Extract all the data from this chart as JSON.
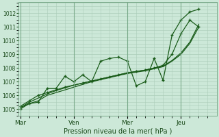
{
  "bg_color": "#cce8d8",
  "grid_color": "#aaccb8",
  "line_color": "#1a5c1a",
  "xlabel": "Pression niveau de la mer( hPa )",
  "ylim": [
    1004.5,
    1012.8
  ],
  "yticks": [
    1005,
    1006,
    1007,
    1008,
    1009,
    1010,
    1011,
    1012
  ],
  "xtick_labels": [
    "Mar",
    "Ven",
    "Mer",
    "Jeu"
  ],
  "xtick_positions": [
    0,
    3,
    6,
    9
  ],
  "xlim": [
    -0.1,
    11.0
  ],
  "line1_x": [
    0,
    0.5,
    1.0,
    1.5,
    2.0,
    2.5,
    3.0,
    3.5,
    4.0,
    4.5,
    5.0,
    5.5,
    6.0,
    6.5,
    7.0,
    7.5,
    8.0,
    8.5,
    9.0,
    9.5,
    10.0
  ],
  "line1_y": [
    1005.0,
    1005.4,
    1005.5,
    1006.5,
    1006.5,
    1007.4,
    1007.0,
    1007.5,
    1007.0,
    1008.5,
    1008.7,
    1008.8,
    1008.5,
    1006.7,
    1007.0,
    1008.7,
    1007.1,
    1010.4,
    1011.5,
    1012.1,
    1012.3
  ],
  "line2_x": [
    0,
    0.5,
    1.0,
    1.5,
    2.0,
    2.5,
    3.0,
    3.5,
    4.0,
    4.5,
    5.0,
    5.5,
    6.0,
    6.5,
    7.0,
    7.5,
    8.0,
    8.5,
    9.0,
    9.5,
    10.0
  ],
  "line2_y": [
    1005.1,
    1005.4,
    1005.6,
    1006.0,
    1006.2,
    1006.4,
    1006.6,
    1006.8,
    1007.0,
    1007.15,
    1007.3,
    1007.45,
    1007.6,
    1007.7,
    1007.8,
    1007.95,
    1008.1,
    1008.5,
    1009.0,
    1009.8,
    1011.0
  ],
  "line3_x": [
    0,
    0.5,
    1.0,
    1.5,
    2.0,
    2.5,
    3.0,
    3.5,
    4.0,
    4.5,
    5.0,
    5.5,
    6.0,
    6.5,
    7.0,
    7.5,
    8.0,
    8.5,
    9.0,
    9.5,
    10.0
  ],
  "line3_y": [
    1005.1,
    1005.5,
    1005.8,
    1006.1,
    1006.35,
    1006.55,
    1006.75,
    1006.9,
    1007.05,
    1007.2,
    1007.35,
    1007.5,
    1007.65,
    1007.75,
    1007.85,
    1008.0,
    1008.15,
    1008.55,
    1009.1,
    1009.9,
    1011.2
  ],
  "line4_x": [
    0,
    0.5,
    1.0,
    1.5,
    2.0,
    2.5,
    3.0,
    3.5,
    4.0,
    4.5,
    5.0,
    5.5,
    6.0,
    6.5,
    7.0,
    7.5,
    8.0,
    8.5,
    9.0,
    9.5,
    10.0
  ],
  "line4_y": [
    1005.2,
    1005.6,
    1006.0,
    1006.2,
    1006.4,
    1006.6,
    1006.75,
    1006.9,
    1007.05,
    1007.2,
    1007.35,
    1007.5,
    1007.65,
    1007.75,
    1007.85,
    1008.0,
    1008.2,
    1009.0,
    1010.5,
    1011.5,
    1011.0
  ]
}
